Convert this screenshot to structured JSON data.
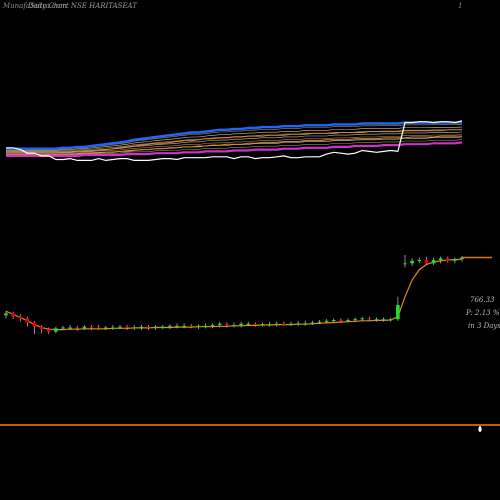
{
  "header": {
    "brand": "MunafaSutra.com",
    "title": "Daily Chart NSE HARITASEAT",
    "page_marker": "1"
  },
  "side_labels": {
    "price": "766.33",
    "change": "P: 2.13 %",
    "period": "in 3 Days"
  },
  "colors": {
    "background": "#000000",
    "up_candle": "#22dd22",
    "down_candle": "#e60000",
    "sma_line": "#e08a1e",
    "price_line": "#e8751a",
    "bottom_line": "#ff7f00",
    "indicator_close": "#ffffff",
    "band_upper": "#1f66ff",
    "band_lower": "#cc33cc",
    "mid_lines": "#c9a37a"
  },
  "chart_data": [
    {
      "type": "line",
      "name": "upper indicator panel",
      "title": "",
      "x": [
        0,
        1,
        2,
        3,
        4,
        5,
        6,
        7,
        8,
        9,
        10,
        11,
        12,
        13,
        14,
        15,
        16,
        17,
        18,
        19,
        20,
        21,
        22,
        23,
        24,
        25,
        26,
        27,
        28,
        29,
        30,
        31,
        32,
        33,
        34,
        35,
        36,
        37,
        38,
        39,
        40,
        41,
        42,
        43,
        44,
        45,
        46,
        47,
        48,
        49,
        50,
        51,
        52,
        53,
        54,
        55,
        56,
        57,
        58,
        59,
        60,
        61,
        62,
        63,
        64
      ],
      "series": [
        {
          "key": "close",
          "values": [
            58,
            58,
            56,
            52,
            52,
            49,
            49,
            45,
            45,
            46,
            44,
            44,
            44,
            46,
            44,
            45,
            46,
            46,
            44,
            44,
            44,
            45,
            46,
            46,
            45,
            47,
            47,
            47,
            47,
            48,
            48,
            48,
            46,
            48,
            48,
            46,
            47,
            47,
            48,
            49,
            47,
            47,
            48,
            48,
            48,
            51,
            53,
            52,
            51,
            52,
            55,
            54,
            53,
            54,
            55,
            54,
            86,
            86,
            87,
            87,
            86,
            87,
            87,
            86,
            88
          ]
        },
        {
          "key": "band_upper",
          "values": [
            57,
            57,
            57,
            57,
            57,
            57,
            57,
            57,
            58,
            58,
            59,
            59,
            60,
            61,
            62,
            63,
            64,
            65,
            67,
            68,
            69,
            70,
            71,
            72,
            73,
            74,
            75,
            75,
            76,
            77,
            78,
            78,
            79,
            79,
            80,
            80,
            81,
            81,
            81,
            82,
            82,
            82,
            83,
            83,
            83,
            83,
            84,
            84,
            84,
            84,
            85,
            85,
            85,
            85,
            85,
            85,
            86,
            86,
            86,
            86,
            86,
            86,
            86,
            86,
            86
          ]
        },
        {
          "key": "band_lower",
          "values": [
            49,
            49,
            49,
            49,
            49,
            49,
            49,
            49,
            49,
            49,
            49,
            50,
            50,
            50,
            50,
            50,
            50,
            51,
            51,
            51,
            51,
            52,
            52,
            52,
            52,
            53,
            53,
            53,
            54,
            54,
            54,
            54,
            55,
            55,
            55,
            56,
            56,
            56,
            56,
            57,
            57,
            57,
            58,
            58,
            58,
            58,
            59,
            59,
            59,
            60,
            60,
            60,
            60,
            61,
            61,
            61,
            62,
            62,
            62,
            62,
            63,
            63,
            63,
            63,
            64
          ]
        },
        {
          "key": "mid_1",
          "values": [
            53,
            53,
            53,
            53,
            53,
            53,
            53,
            53,
            53,
            53,
            54,
            54,
            54,
            55,
            56,
            57,
            58,
            59,
            60,
            61,
            62,
            63,
            63,
            64,
            65,
            66,
            66,
            67,
            68,
            68,
            69,
            69,
            70,
            70,
            71,
            71,
            71,
            72,
            72,
            72,
            73,
            73,
            73,
            74,
            74,
            74,
            74,
            75,
            75,
            75,
            75,
            76,
            76,
            76,
            76,
            76,
            77,
            77,
            77,
            77,
            77,
            77,
            78,
            78,
            78
          ]
        },
        {
          "key": "mid_2",
          "values": [
            51,
            51,
            51,
            51,
            51,
            51,
            51,
            51,
            51,
            51,
            51,
            52,
            52,
            52,
            53,
            53,
            54,
            54,
            55,
            56,
            56,
            57,
            57,
            58,
            58,
            59,
            59,
            60,
            60,
            61,
            61,
            62,
            62,
            62,
            63,
            63,
            64,
            64,
            64,
            65,
            65,
            65,
            66,
            66,
            66,
            67,
            67,
            67,
            67,
            68,
            68,
            68,
            68,
            69,
            69,
            69,
            69,
            70,
            70,
            70,
            70,
            71,
            71,
            71,
            71
          ]
        }
      ]
    },
    {
      "type": "candlestick",
      "name": "price panel",
      "title": "",
      "x": [
        0,
        1,
        2,
        3,
        4,
        5,
        6,
        7,
        8,
        9,
        10,
        11,
        12,
        13,
        14,
        15,
        16,
        17,
        18,
        19,
        20,
        21,
        22,
        23,
        24,
        25,
        26,
        27,
        28,
        29,
        30,
        31,
        32,
        33,
        34,
        35,
        36,
        37,
        38,
        39,
        40,
        41,
        42,
        43,
        44,
        45,
        46,
        47,
        48,
        49,
        50,
        51,
        52,
        53,
        54,
        55,
        56,
        57,
        58,
        59,
        60,
        61,
        62,
        63,
        64
      ],
      "open": [
        575,
        580,
        572,
        568,
        558,
        548,
        542,
        536,
        544,
        546,
        546,
        544,
        548,
        546,
        544,
        546,
        546,
        548,
        546,
        546,
        548,
        546,
        548,
        548,
        550,
        550,
        550,
        548,
        550,
        550,
        552,
        555,
        552,
        552,
        555,
        555,
        552,
        554,
        554,
        555,
        554,
        555,
        556,
        556,
        558,
        560,
        562,
        564,
        562,
        564,
        566,
        568,
        566,
        566,
        566,
        566,
        700,
        700,
        706,
        708,
        700,
        708,
        712,
        706,
        710
      ],
      "close": [
        580,
        572,
        568,
        558,
        548,
        542,
        536,
        544,
        546,
        546,
        544,
        548,
        546,
        544,
        546,
        546,
        548,
        546,
        546,
        548,
        546,
        548,
        548,
        550,
        550,
        550,
        548,
        550,
        550,
        552,
        555,
        552,
        552,
        555,
        555,
        552,
        554,
        554,
        555,
        554,
        555,
        556,
        556,
        558,
        560,
        562,
        564,
        562,
        564,
        566,
        568,
        566,
        566,
        566,
        566,
        600,
        700,
        706,
        708,
        700,
        708,
        712,
        706,
        710,
        714
      ],
      "high": [
        585,
        584,
        578,
        572,
        562,
        552,
        546,
        548,
        550,
        552,
        550,
        552,
        552,
        552,
        550,
        552,
        552,
        552,
        552,
        552,
        552,
        552,
        552,
        554,
        556,
        556,
        554,
        554,
        556,
        556,
        560,
        558,
        558,
        560,
        560,
        558,
        558,
        560,
        560,
        560,
        560,
        562,
        562,
        562,
        564,
        566,
        568,
        568,
        568,
        570,
        572,
        572,
        570,
        570,
        570,
        620,
        720,
        712,
        714,
        716,
        714,
        716,
        716,
        714,
        718
      ],
      "low": [
        568,
        566,
        560,
        548,
        530,
        532,
        530,
        532,
        540,
        540,
        538,
        540,
        540,
        540,
        540,
        540,
        542,
        540,
        540,
        540,
        540,
        540,
        542,
        542,
        544,
        544,
        544,
        542,
        544,
        544,
        546,
        546,
        546,
        546,
        550,
        548,
        548,
        548,
        548,
        550,
        550,
        550,
        550,
        552,
        554,
        556,
        558,
        558,
        558,
        560,
        562,
        562,
        560,
        560,
        560,
        562,
        690,
        694,
        700,
        698,
        696,
        700,
        702,
        700,
        704
      ],
      "sma": [
        585,
        578,
        570,
        562,
        553,
        546,
        542,
        541,
        541,
        542,
        542,
        543,
        543,
        543,
        543,
        544,
        544,
        544,
        545,
        545,
        545,
        546,
        546,
        546,
        547,
        547,
        547,
        548,
        548,
        548,
        549,
        549,
        550,
        550,
        551,
        551,
        552,
        552,
        553,
        553,
        553,
        554,
        554,
        555,
        556,
        557,
        558,
        559,
        560,
        561,
        562,
        562,
        563,
        563,
        564,
        572,
        620,
        660,
        685,
        697,
        703,
        706,
        708,
        709,
        710
      ],
      "ylim": [
        420,
        780
      ],
      "annotations": [
        "766.33",
        "P: 2.13 %",
        "in 3 Days"
      ]
    }
  ]
}
